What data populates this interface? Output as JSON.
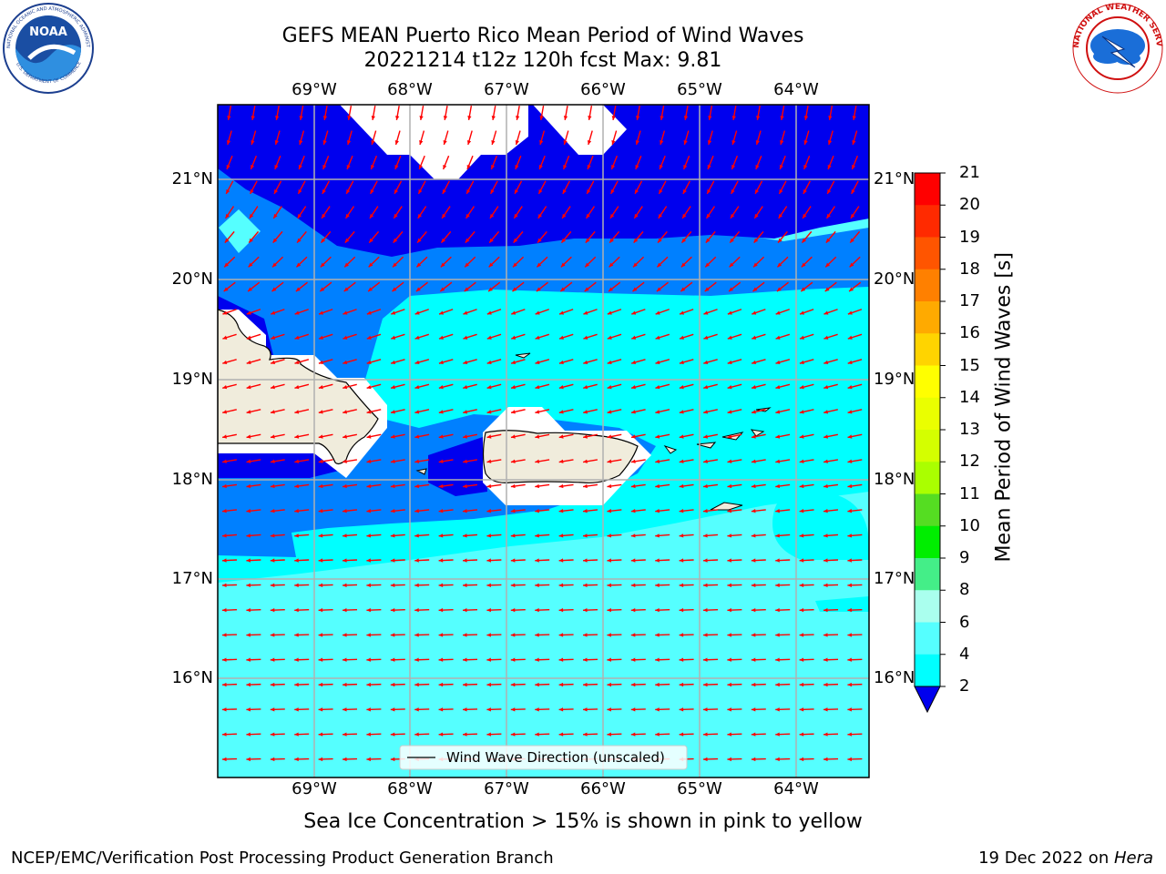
{
  "header": {
    "title_line1": "GEFS MEAN Puerto Rico Mean Period of Wind Waves",
    "title_line2": "20221214 t12z 120h fcst   Max: 9.81"
  },
  "logos": {
    "left": {
      "name": "NOAA",
      "ring_text": "NATIONAL OCEANIC AND ATMOSPHERIC ADMINISTRATION",
      "bottom_text": "U.S. DEPARTMENT OF COMMERCE"
    },
    "right": {
      "ring_text": "NATIONAL WEATHER SERVICE"
    }
  },
  "map": {
    "lon_labels": [
      "69°W",
      "68°W",
      "67°W",
      "66°W",
      "65°W",
      "64°W"
    ],
    "lat_labels": [
      "21°N",
      "20°N",
      "19°N",
      "18°N",
      "17°N",
      "16°N"
    ],
    "legend_label": "Wind Wave Direction (unscaled)",
    "colors": {
      "land": "#f0ecdc",
      "mask": "#ffffff",
      "arrow": "#ff0000",
      "grid": "#b0b0b0"
    }
  },
  "colorbar": {
    "label": "Mean Period of Wind Waves [s]",
    "ticks": [
      "21",
      "20",
      "19",
      "18",
      "17",
      "16",
      "15",
      "14",
      "13",
      "12",
      "11",
      "10",
      "9",
      "8",
      "6",
      "4",
      "2"
    ],
    "colors": [
      "#ff0000",
      "#ff2a00",
      "#ff5500",
      "#ff8000",
      "#ffaa00",
      "#ffd400",
      "#ffff00",
      "#eaff00",
      "#d4ff00",
      "#aaff00",
      "#55dd22",
      "#00ee00",
      "#44ee88",
      "#aaffee",
      "#55ffff",
      "#00ffff",
      "#0080ff"
    ],
    "extend_color": "#0000ee"
  },
  "chart_data": {
    "type": "heatmap",
    "title": "GEFS MEAN Puerto Rico Mean Period of Wind Waves",
    "subtitle": "20221214 t12z 120h fcst   Max: 9.81",
    "xlabel": "",
    "ylabel": "",
    "x_ticks": [
      "69°W",
      "68°W",
      "67°W",
      "66°W",
      "65°W",
      "64°W"
    ],
    "y_ticks": [
      "21°N",
      "20°N",
      "19°N",
      "18°N",
      "17°N",
      "16°N"
    ],
    "colorbar_label": "Mean Period of Wind Waves [s]",
    "colorbar_levels": [
      2,
      4,
      6,
      8,
      9,
      10,
      11,
      12,
      13,
      14,
      15,
      16,
      17,
      18,
      19,
      20,
      21
    ],
    "max_value": 9.81,
    "legend": {
      "entries": [
        "Wind Wave Direction (unscaled)"
      ],
      "placement": "bottom-center"
    },
    "grid": true
  },
  "footer": {
    "note": "Sea Ice Concentration > 15% is shown in pink to yellow",
    "credit": "NCEP/EMC/Verification Post Processing Product Generation Branch",
    "date_prefix": "19 Dec 2022 on ",
    "date_host": "Hera"
  }
}
